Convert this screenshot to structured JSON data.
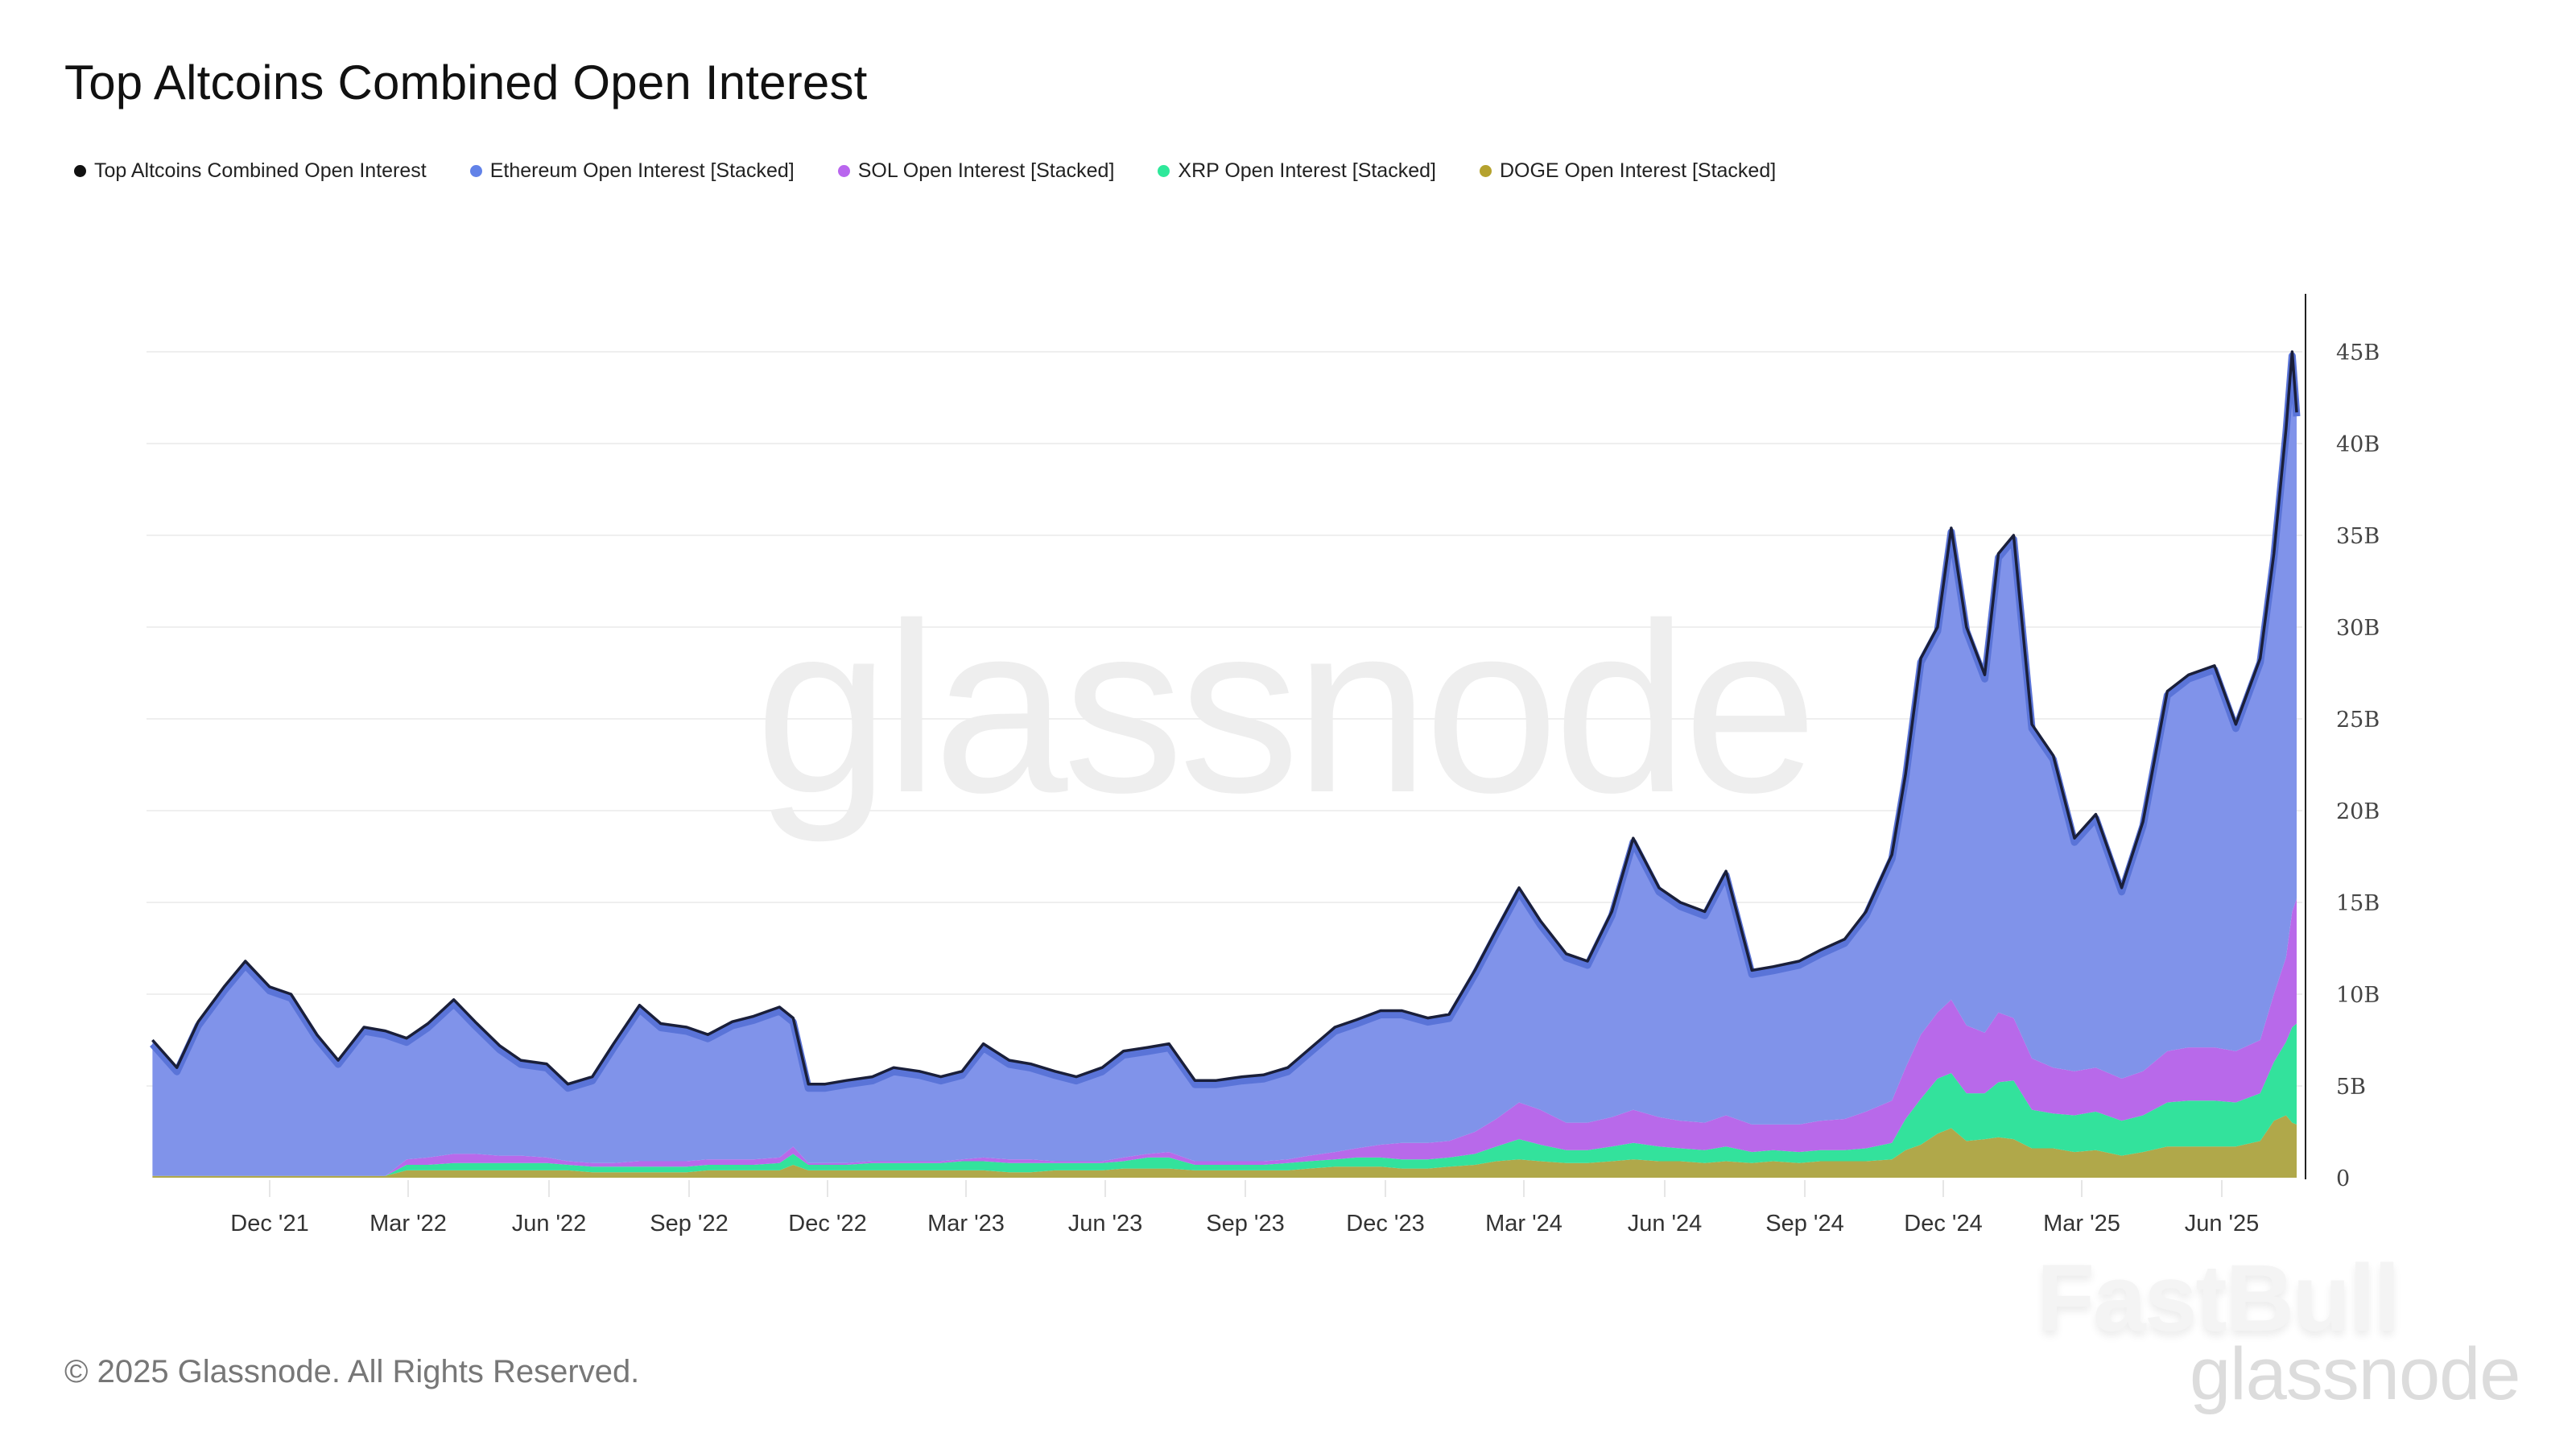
{
  "title": "Top Altcoins Combined Open Interest",
  "legend": [
    {
      "label": "Top Altcoins Combined Open Interest",
      "color": "#111111"
    },
    {
      "label": "Ethereum Open Interest [Stacked]",
      "color": "#6282e8"
    },
    {
      "label": "SOL Open Interest [Stacked]",
      "color": "#b966ee"
    },
    {
      "label": "XRP Open Interest [Stacked]",
      "color": "#2ee89a"
    },
    {
      "label": "DOGE Open Interest [Stacked]",
      "color": "#b5a22e"
    }
  ],
  "watermark": "glassnode",
  "footer": {
    "copyright": "© 2025 Glassnode. All Rights Reserved.",
    "brand_fastbull": "FastBull",
    "brand_glassnode": "glassnode"
  },
  "chart_data": {
    "type": "area",
    "title": "Top Altcoins Combined Open Interest",
    "xlabel": "",
    "ylabel": "",
    "stacked": true,
    "ylim": [
      0,
      48
    ],
    "y_ticks": [
      "0",
      "5B",
      "10B",
      "15B",
      "20B",
      "25B",
      "30B",
      "35B",
      "40B",
      "45B"
    ],
    "x_ticks": [
      "Dec '21",
      "Mar '22",
      "Jun '22",
      "Sep '22",
      "Dec '22",
      "Mar '23",
      "Jun '23",
      "Sep '23",
      "Dec '23",
      "Mar '24",
      "Jun '24",
      "Sep '24",
      "Dec '24",
      "Mar '25",
      "Jun '25"
    ],
    "grid": true,
    "legend_position": "top-left",
    "x": [
      "2021-09-15",
      "2021-10-01",
      "2021-10-15",
      "2021-11-01",
      "2021-11-15",
      "2021-12-01",
      "2021-12-15",
      "2022-01-01",
      "2022-01-15",
      "2022-02-01",
      "2022-02-15",
      "2022-03-01",
      "2022-03-15",
      "2022-04-01",
      "2022-04-15",
      "2022-05-01",
      "2022-05-15",
      "2022-06-01",
      "2022-06-15",
      "2022-07-01",
      "2022-07-15",
      "2022-08-01",
      "2022-08-15",
      "2022-09-01",
      "2022-09-15",
      "2022-10-01",
      "2022-10-15",
      "2022-11-01",
      "2022-11-10",
      "2022-11-20",
      "2022-12-01",
      "2022-12-15",
      "2023-01-01",
      "2023-01-15",
      "2023-02-01",
      "2023-02-15",
      "2023-03-01",
      "2023-03-15",
      "2023-04-01",
      "2023-04-15",
      "2023-05-01",
      "2023-05-15",
      "2023-06-01",
      "2023-06-15",
      "2023-07-01",
      "2023-07-15",
      "2023-08-01",
      "2023-08-15",
      "2023-09-01",
      "2023-09-15",
      "2023-10-01",
      "2023-10-15",
      "2023-11-01",
      "2023-11-15",
      "2023-12-01",
      "2023-12-15",
      "2024-01-01",
      "2024-01-15",
      "2024-02-01",
      "2024-02-15",
      "2024-03-01",
      "2024-03-15",
      "2024-04-01",
      "2024-04-15",
      "2024-05-01",
      "2024-05-15",
      "2024-06-01",
      "2024-06-15",
      "2024-07-01",
      "2024-07-15",
      "2024-08-01",
      "2024-08-15",
      "2024-09-01",
      "2024-09-15",
      "2024-10-01",
      "2024-10-15",
      "2024-11-01",
      "2024-11-10",
      "2024-11-20",
      "2024-12-01",
      "2024-12-10",
      "2024-12-20",
      "2025-01-01",
      "2025-01-10",
      "2025-01-20",
      "2025-02-01",
      "2025-02-15",
      "2025-03-01",
      "2025-03-15",
      "2025-04-01",
      "2025-04-15",
      "2025-05-01",
      "2025-05-15",
      "2025-06-01",
      "2025-06-15",
      "2025-07-01",
      "2025-07-10",
      "2025-07-18",
      "2025-07-22",
      "2025-07-25"
    ],
    "series": [
      {
        "name": "Top Altcoins Combined Open Interest",
        "values": [
          7.5,
          6.0,
          8.5,
          10.4,
          11.8,
          10.4,
          10.0,
          7.8,
          6.4,
          8.2,
          8.0,
          7.6,
          8.4,
          9.7,
          8.5,
          7.2,
          6.4,
          6.2,
          5.1,
          5.5,
          7.3,
          9.4,
          8.4,
          8.2,
          7.8,
          8.5,
          8.8,
          9.3,
          8.7,
          5.1,
          5.1,
          5.3,
          5.5,
          6.0,
          5.8,
          5.5,
          5.8,
          7.3,
          6.4,
          6.2,
          5.8,
          5.5,
          6.0,
          6.9,
          7.1,
          7.3,
          5.3,
          5.3,
          5.5,
          5.6,
          6.0,
          7.0,
          8.2,
          8.6,
          9.1,
          9.1,
          8.7,
          8.9,
          11.3,
          13.5,
          15.8,
          14.0,
          12.2,
          11.8,
          14.5,
          18.5,
          15.8,
          15.0,
          14.5,
          16.7,
          11.3,
          11.5,
          11.8,
          12.4,
          13.0,
          14.5,
          17.6,
          22.0,
          28.3,
          30.0,
          35.4,
          30.0,
          27.4,
          34.0,
          35.0,
          24.7,
          23.0,
          18.5,
          19.8,
          15.8,
          19.4,
          26.5,
          27.4,
          27.9,
          24.7,
          28.3,
          34.0,
          40.8,
          45.0,
          41.7
        ]
      },
      {
        "name": "Ethereum Open Interest [Stacked]",
        "values": [
          7.4,
          5.9,
          8.4,
          10.3,
          11.7,
          10.3,
          9.9,
          7.7,
          6.3,
          8.1,
          7.9,
          6.6,
          7.3,
          8.4,
          7.2,
          6.0,
          5.2,
          5.1,
          4.2,
          4.7,
          6.5,
          8.5,
          7.5,
          7.3,
          6.8,
          7.5,
          7.8,
          8.2,
          7.0,
          4.3,
          4.3,
          4.5,
          4.6,
          5.1,
          4.9,
          4.6,
          4.8,
          6.2,
          5.4,
          5.2,
          4.9,
          4.6,
          5.1,
          5.8,
          5.8,
          5.9,
          4.4,
          4.4,
          4.6,
          4.7,
          5.0,
          5.8,
          6.8,
          7.0,
          7.3,
          7.2,
          6.8,
          6.9,
          8.8,
          10.3,
          11.7,
          10.3,
          9.2,
          8.8,
          11.2,
          14.8,
          12.5,
          11.9,
          11.5,
          13.3,
          8.4,
          8.6,
          8.9,
          9.3,
          9.8,
          10.9,
          13.4,
          16.0,
          20.5,
          21.0,
          25.7,
          21.7,
          19.5,
          25.0,
          26.3,
          18.2,
          17.0,
          12.7,
          13.8,
          10.4,
          13.6,
          19.6,
          20.3,
          20.8,
          17.8,
          20.8,
          24.0,
          28.8,
          30.5,
          26.5
        ]
      },
      {
        "name": "SOL Open Interest [Stacked]",
        "values": [
          0,
          0,
          0,
          0,
          0,
          0,
          0,
          0,
          0,
          0,
          0,
          0.3,
          0.4,
          0.5,
          0.5,
          0.4,
          0.4,
          0.3,
          0.2,
          0.2,
          0.2,
          0.3,
          0.3,
          0.3,
          0.3,
          0.3,
          0.3,
          0.3,
          0.4,
          0.1,
          0.1,
          0.1,
          0.1,
          0.1,
          0.1,
          0.1,
          0.1,
          0.2,
          0.2,
          0.2,
          0.1,
          0.1,
          0.1,
          0.2,
          0.2,
          0.3,
          0.2,
          0.2,
          0.2,
          0.2,
          0.2,
          0.3,
          0.4,
          0.5,
          0.7,
          0.9,
          0.9,
          0.9,
          1.2,
          1.5,
          2.0,
          1.9,
          1.5,
          1.5,
          1.6,
          1.8,
          1.6,
          1.5,
          1.5,
          1.7,
          1.5,
          1.4,
          1.5,
          1.6,
          1.7,
          2.0,
          2.3,
          2.8,
          3.5,
          3.6,
          4.0,
          3.7,
          3.3,
          3.8,
          3.4,
          2.8,
          2.5,
          2.4,
          2.4,
          2.3,
          2.4,
          2.8,
          2.9,
          2.9,
          2.8,
          2.9,
          3.7,
          4.6,
          6.3,
          6.8
        ]
      },
      {
        "name": "XRP Open Interest [Stacked]",
        "values": [
          0,
          0,
          0,
          0,
          0,
          0,
          0,
          0,
          0,
          0,
          0,
          0.3,
          0.3,
          0.4,
          0.4,
          0.4,
          0.4,
          0.4,
          0.3,
          0.3,
          0.3,
          0.3,
          0.3,
          0.3,
          0.3,
          0.3,
          0.3,
          0.4,
          0.6,
          0.3,
          0.3,
          0.3,
          0.4,
          0.4,
          0.4,
          0.4,
          0.5,
          0.5,
          0.5,
          0.5,
          0.4,
          0.4,
          0.4,
          0.4,
          0.6,
          0.6,
          0.3,
          0.3,
          0.3,
          0.3,
          0.4,
          0.4,
          0.4,
          0.5,
          0.5,
          0.5,
          0.5,
          0.5,
          0.6,
          0.8,
          1.1,
          0.9,
          0.7,
          0.7,
          0.8,
          0.9,
          0.8,
          0.7,
          0.7,
          0.8,
          0.6,
          0.6,
          0.6,
          0.6,
          0.6,
          0.7,
          0.9,
          1.7,
          2.5,
          3.0,
          3.0,
          2.6,
          2.5,
          3.0,
          3.2,
          2.1,
          1.9,
          2.0,
          2.1,
          1.9,
          2.0,
          2.4,
          2.5,
          2.5,
          2.4,
          2.6,
          3.2,
          4.0,
          5.2,
          5.5
        ]
      },
      {
        "name": "DOGE Open Interest [Stacked]",
        "values": [
          0.1,
          0.1,
          0.1,
          0.1,
          0.1,
          0.1,
          0.1,
          0.1,
          0.1,
          0.1,
          0.1,
          0.4,
          0.4,
          0.4,
          0.4,
          0.4,
          0.4,
          0.4,
          0.4,
          0.3,
          0.3,
          0.3,
          0.3,
          0.3,
          0.4,
          0.4,
          0.4,
          0.4,
          0.7,
          0.4,
          0.4,
          0.4,
          0.4,
          0.4,
          0.4,
          0.4,
          0.4,
          0.4,
          0.3,
          0.3,
          0.4,
          0.4,
          0.4,
          0.5,
          0.5,
          0.5,
          0.4,
          0.4,
          0.4,
          0.4,
          0.4,
          0.5,
          0.6,
          0.6,
          0.6,
          0.5,
          0.5,
          0.6,
          0.7,
          0.9,
          1.0,
          0.9,
          0.8,
          0.8,
          0.9,
          1.0,
          0.9,
          0.9,
          0.8,
          0.9,
          0.8,
          0.9,
          0.8,
          0.9,
          0.9,
          0.9,
          1.0,
          1.5,
          1.8,
          2.4,
          2.7,
          2.0,
          2.1,
          2.2,
          2.1,
          1.6,
          1.6,
          1.4,
          1.5,
          1.2,
          1.4,
          1.7,
          1.7,
          1.7,
          1.7,
          2.0,
          3.1,
          3.4,
          3.0,
          2.9
        ]
      }
    ]
  }
}
